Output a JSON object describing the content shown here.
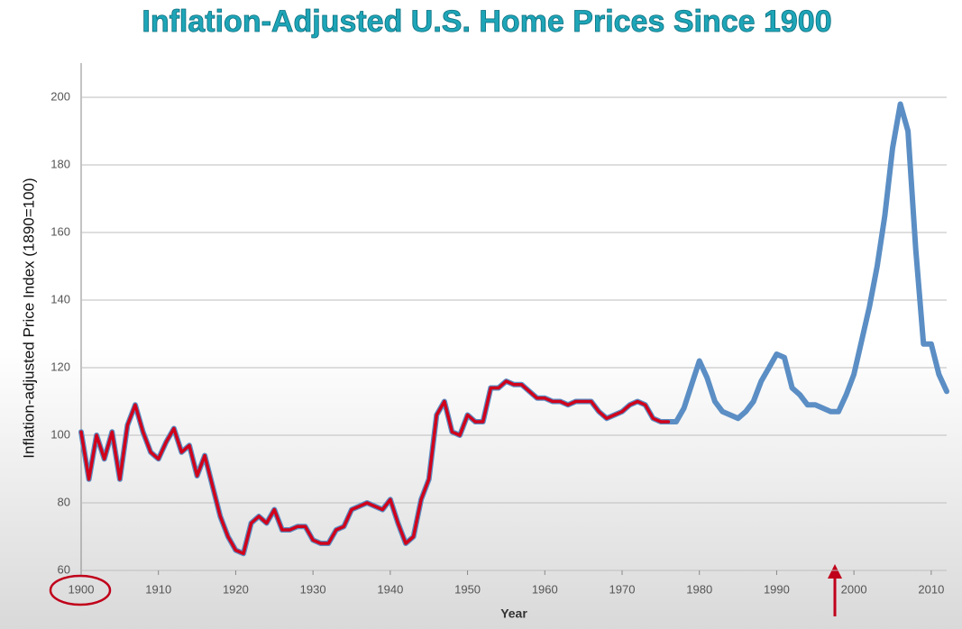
{
  "chart_data": {
    "type": "line",
    "title": "Inflation-Adjusted U.S. Home Prices Since 1900",
    "x_label": "Year",
    "y_label": "Inflation-adjusted Price Index (1890=100)",
    "x": [
      1900,
      1901,
      1902,
      1903,
      1904,
      1905,
      1906,
      1907,
      1908,
      1909,
      1910,
      1911,
      1912,
      1913,
      1914,
      1915,
      1916,
      1917,
      1918,
      1919,
      1920,
      1921,
      1922,
      1923,
      1924,
      1925,
      1926,
      1927,
      1928,
      1929,
      1930,
      1931,
      1932,
      1933,
      1934,
      1935,
      1936,
      1937,
      1938,
      1939,
      1940,
      1941,
      1942,
      1943,
      1944,
      1945,
      1946,
      1947,
      1948,
      1949,
      1950,
      1951,
      1952,
      1953,
      1954,
      1955,
      1956,
      1957,
      1958,
      1959,
      1960,
      1961,
      1962,
      1963,
      1964,
      1965,
      1966,
      1967,
      1968,
      1969,
      1970,
      1971,
      1972,
      1973,
      1974,
      1975,
      1976,
      1977,
      1978,
      1979,
      1980,
      1981,
      1982,
      1983,
      1984,
      1985,
      1986,
      1987,
      1988,
      1989,
      1990,
      1991,
      1992,
      1993,
      1994,
      1995,
      1996,
      1997,
      1998,
      1999,
      2000,
      2001,
      2002,
      2003,
      2004,
      2005,
      2006,
      2007,
      2008,
      2009,
      2010,
      2011,
      2012
    ],
    "series": [
      {
        "color": "#5b8ec4",
        "values": [
          101,
          87,
          100,
          93,
          101,
          87,
          103,
          109,
          101,
          95,
          93,
          98,
          102,
          95,
          97,
          88,
          94,
          85,
          76,
          70,
          66,
          65,
          74,
          76,
          74,
          78,
          72,
          72,
          73,
          73,
          69,
          68,
          68,
          72,
          73,
          78,
          79,
          80,
          79,
          78,
          81,
          74,
          68,
          70,
          81,
          87,
          106,
          110,
          101,
          100,
          106,
          104,
          104,
          114,
          114,
          116,
          115,
          115,
          113,
          111,
          111,
          110,
          110,
          109,
          110,
          110,
          110,
          107,
          105,
          106,
          107,
          109,
          110,
          109,
          105,
          104,
          104,
          104,
          108,
          115,
          122,
          117,
          110,
          107,
          106,
          105,
          107,
          110,
          116,
          120,
          124,
          123,
          114,
          112,
          109,
          109,
          108,
          107,
          107,
          112,
          118,
          128,
          138,
          150,
          165,
          185,
          198,
          190,
          155,
          127,
          127,
          118,
          113
        ]
      },
      {
        "color": "#d0021b",
        "values": [
          101,
          87,
          100,
          93,
          101,
          87,
          103,
          109,
          101,
          95,
          93,
          98,
          102,
          95,
          97,
          88,
          94,
          85,
          76,
          70,
          66,
          65,
          74,
          76,
          74,
          78,
          72,
          72,
          73,
          73,
          69,
          68,
          68,
          72,
          73,
          78,
          79,
          80,
          79,
          78,
          81,
          74,
          68,
          70,
          81,
          87,
          106,
          110,
          101,
          100,
          106,
          104,
          104,
          114,
          114,
          116,
          115,
          115,
          113,
          111,
          111,
          110,
          110,
          109,
          110,
          110,
          110,
          107,
          105,
          106,
          107,
          109,
          110,
          109,
          105,
          104,
          104,
          null,
          null,
          null,
          null,
          null,
          null,
          null,
          null,
          null,
          null,
          null,
          null,
          null,
          null,
          null,
          null,
          null,
          null,
          null,
          null,
          null,
          null,
          null,
          null,
          null,
          null,
          null,
          null,
          null,
          null,
          null,
          null,
          null,
          null,
          null,
          null
        ]
      }
    ],
    "xlim": [
      1900,
      2012
    ],
    "xticks": [
      1900,
      1910,
      1920,
      1930,
      1940,
      1950,
      1960,
      1970,
      1980,
      1990,
      2000,
      2010
    ],
    "ylim": [
      60,
      210
    ],
    "yticks": [
      60,
      80,
      100,
      120,
      140,
      160,
      180,
      200
    ],
    "grid": true
  }
}
